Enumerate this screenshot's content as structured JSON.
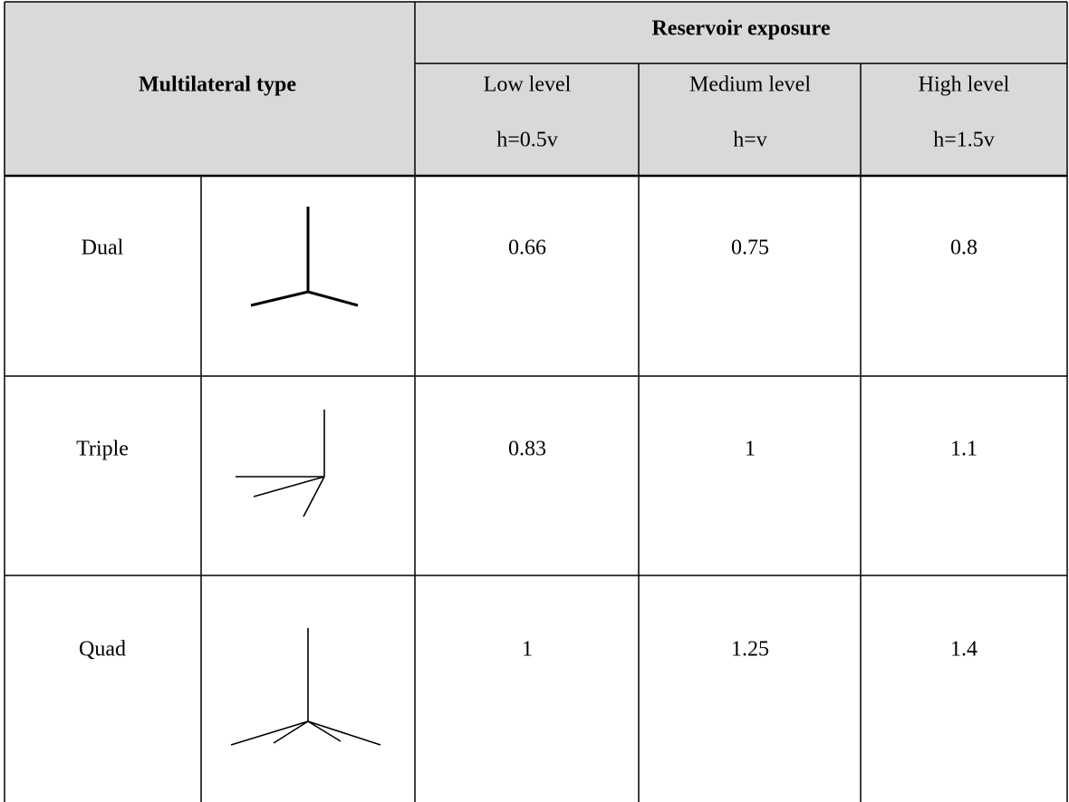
{
  "table": {
    "row_header": "Multilateral type",
    "column_group": "Reservoir exposure",
    "columns": [
      {
        "level": "Low level",
        "ratio": "h=0.5v"
      },
      {
        "level": "Medium level",
        "ratio": "h=v"
      },
      {
        "level": "High level",
        "ratio": "h=1.5v"
      }
    ],
    "rows": [
      {
        "name": "Dual",
        "values": [
          0.66,
          0.75,
          0.8
        ]
      },
      {
        "name": "Triple",
        "values": [
          0.83,
          1,
          1.1
        ]
      },
      {
        "name": "Quad",
        "values": [
          1,
          1.25,
          1.4
        ]
      }
    ]
  }
}
